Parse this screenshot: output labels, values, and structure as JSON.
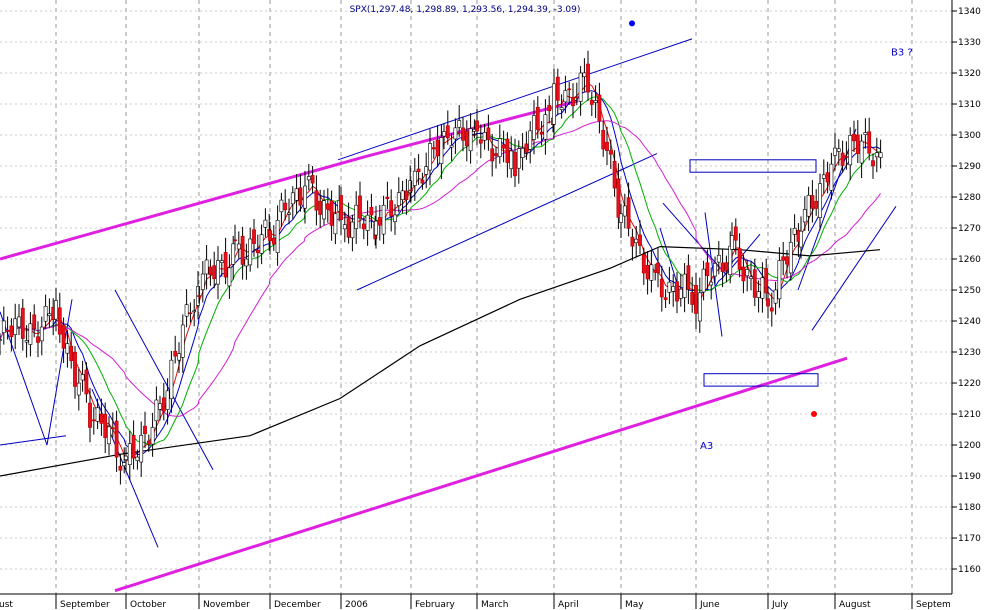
{
  "chart_data": {
    "type": "candlestick",
    "title": "SPX(1,297.48, 1,298.89, 1,293.56, 1,294.39, -3.09)",
    "ylim": [
      1153,
      1343
    ],
    "y_ticks": [
      1160,
      1170,
      1180,
      1190,
      1200,
      1210,
      1220,
      1230,
      1240,
      1250,
      1260,
      1270,
      1280,
      1290,
      1300,
      1310,
      1320,
      1330,
      1340
    ],
    "x_ticks": [
      "ust",
      "September",
      "October",
      "November",
      "December",
      "2006",
      "February",
      "March",
      "April",
      "May",
      "June",
      "July",
      "August",
      "Septem"
    ],
    "grid": true,
    "annotations": [
      {
        "text": "B3 ?",
        "x": "late August",
        "y": 1327
      },
      {
        "text": "A3",
        "x": "early June",
        "y": 1200
      }
    ],
    "markers": [
      {
        "color": "#0000ff",
        "x": "early May",
        "y": 1336
      },
      {
        "color": "#ff0000",
        "x": "late July",
        "y": 1210
      }
    ],
    "price_series": [
      {
        "date": "2005-08-22",
        "close": 1234
      },
      {
        "date": "2005-08-29",
        "close": 1222
      },
      {
        "date": "2005-09-05",
        "close": 1237
      },
      {
        "date": "2005-09-12",
        "close": 1242
      },
      {
        "date": "2005-09-19",
        "close": 1226
      },
      {
        "date": "2005-09-26",
        "close": 1232
      },
      {
        "date": "2005-10-03",
        "close": 1212
      },
      {
        "date": "2005-10-10",
        "close": 1188
      },
      {
        "date": "2005-10-17",
        "close": 1180
      },
      {
        "date": "2005-10-24",
        "close": 1192
      },
      {
        "date": "2005-10-31",
        "close": 1214
      },
      {
        "date": "2005-11-07",
        "close": 1232
      },
      {
        "date": "2005-11-14",
        "close": 1250
      },
      {
        "date": "2005-11-21",
        "close": 1266
      },
      {
        "date": "2005-11-28",
        "close": 1264
      },
      {
        "date": "2005-12-05",
        "close": 1262
      },
      {
        "date": "2005-12-12",
        "close": 1270
      },
      {
        "date": "2005-12-19",
        "close": 1266
      },
      {
        "date": "2005-12-26",
        "close": 1255
      },
      {
        "date": "2006-01-02",
        "close": 1285
      },
      {
        "date": "2006-01-09",
        "close": 1290
      },
      {
        "date": "2006-01-16",
        "close": 1272
      },
      {
        "date": "2006-01-23",
        "close": 1278
      },
      {
        "date": "2006-01-30",
        "close": 1276
      },
      {
        "date": "2006-02-06",
        "close": 1270
      },
      {
        "date": "2006-02-13",
        "close": 1274
      },
      {
        "date": "2006-02-20",
        "close": 1287
      },
      {
        "date": "2006-02-27",
        "close": 1282
      },
      {
        "date": "2006-03-06",
        "close": 1276
      },
      {
        "date": "2006-03-13",
        "close": 1296
      },
      {
        "date": "2006-03-20",
        "close": 1304
      },
      {
        "date": "2006-03-27",
        "close": 1303
      },
      {
        "date": "2006-04-03",
        "close": 1298
      },
      {
        "date": "2006-04-10",
        "close": 1290
      },
      {
        "date": "2006-04-17",
        "close": 1306
      },
      {
        "date": "2006-04-24",
        "close": 1310
      },
      {
        "date": "2006-05-01",
        "close": 1320
      },
      {
        "date": "2006-05-08",
        "close": 1294
      },
      {
        "date": "2006-05-15",
        "close": 1268
      },
      {
        "date": "2006-05-22",
        "close": 1272
      },
      {
        "date": "2006-05-29",
        "close": 1285
      },
      {
        "date": "2006-06-05",
        "close": 1254
      },
      {
        "date": "2006-06-12",
        "close": 1230
      },
      {
        "date": "2006-06-19",
        "close": 1246
      },
      {
        "date": "2006-06-26",
        "close": 1258
      },
      {
        "date": "2006-07-03",
        "close": 1268
      },
      {
        "date": "2006-07-10",
        "close": 1265
      },
      {
        "date": "2006-07-17",
        "close": 1245
      },
      {
        "date": "2006-07-24",
        "close": 1260
      },
      {
        "date": "2006-07-31",
        "close": 1270
      },
      {
        "date": "2006-08-07",
        "close": 1268
      },
      {
        "date": "2006-08-14",
        "close": 1296
      },
      {
        "date": "2006-08-17",
        "close": 1294
      }
    ]
  }
}
